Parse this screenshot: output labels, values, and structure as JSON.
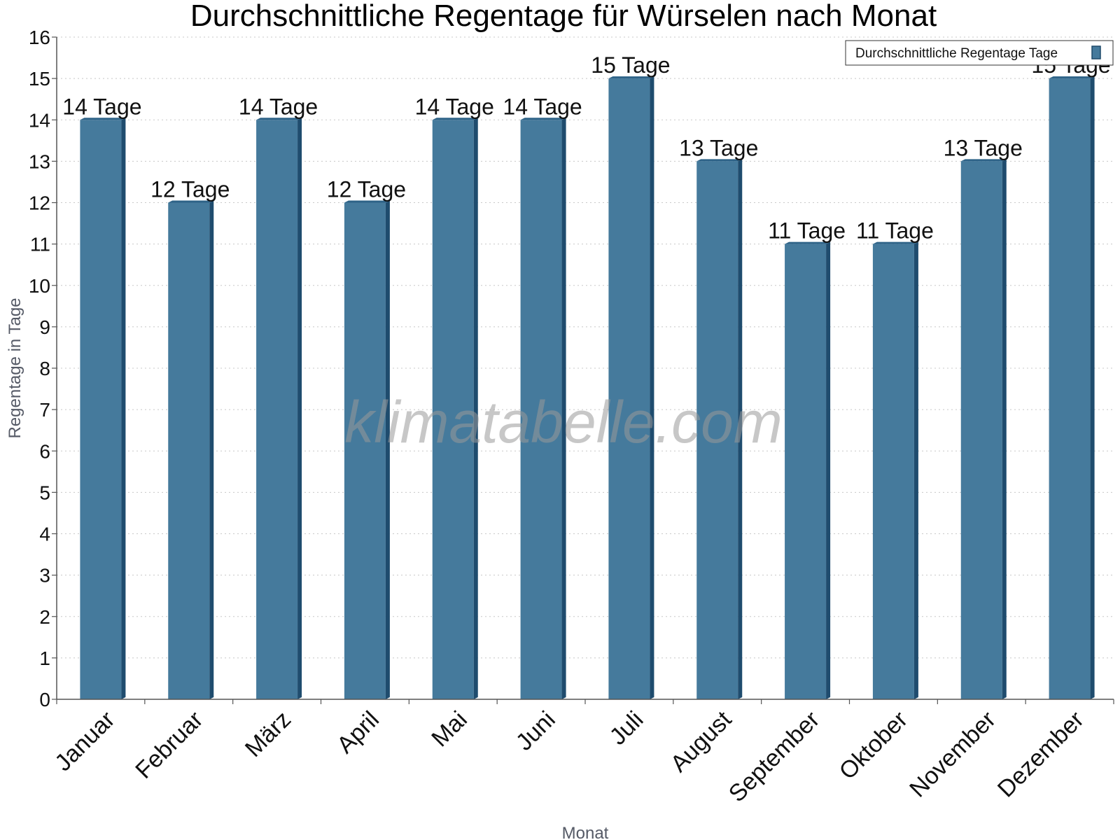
{
  "chart_data": {
    "type": "bar",
    "title": "Durchschnittliche Regentage für Würselen nach Monat",
    "xlabel": "Monat",
    "ylabel": "Regentage in Tage",
    "categories": [
      "Januar",
      "Februar",
      "März",
      "April",
      "Mai",
      "Juni",
      "Juli",
      "August",
      "September",
      "Oktober",
      "November",
      "Dezember"
    ],
    "series": [
      {
        "name": "Durchschnittliche Regentage Tage",
        "values": [
          14,
          12,
          14,
          12,
          14,
          14,
          15,
          13,
          11,
          11,
          13,
          15
        ],
        "labels": [
          "14 Tage",
          "12 Tage",
          "14 Tage",
          "12 Tage",
          "14 Tage",
          "14 Tage",
          "15 Tage",
          "13 Tage",
          "11 Tage",
          "11 Tage",
          "13 Tage",
          "15 Tage"
        ],
        "color": "#457a9c"
      }
    ],
    "ylim": [
      0,
      16
    ],
    "yticks": [
      "0",
      "1",
      "2",
      "3",
      "4",
      "5",
      "6",
      "7",
      "8",
      "9",
      "10",
      "11",
      "12",
      "13",
      "14",
      "15",
      "16"
    ],
    "grid": true,
    "legend_position": "top-right",
    "watermark": "klimatabelle.com"
  }
}
